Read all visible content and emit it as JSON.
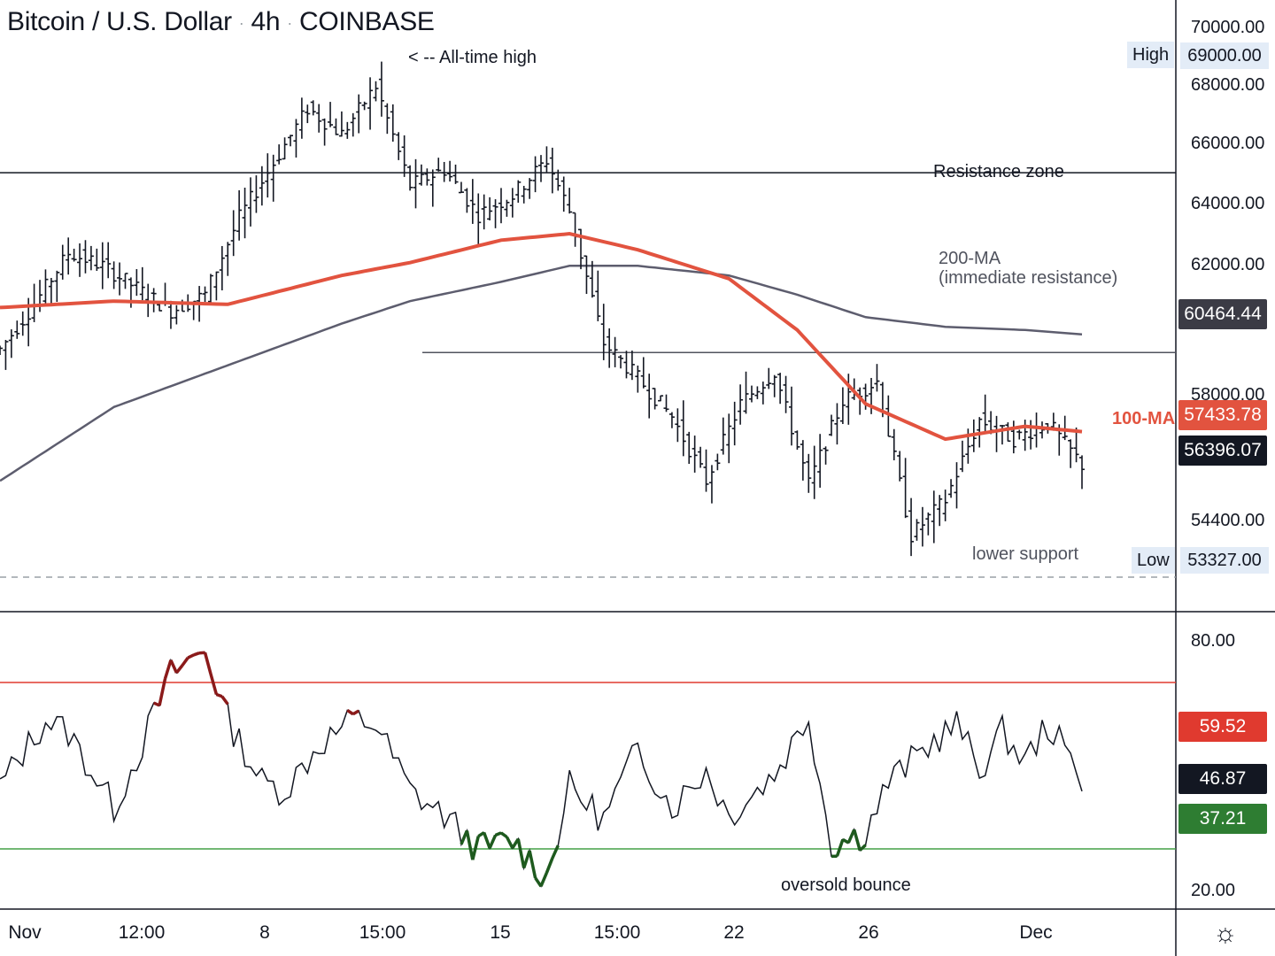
{
  "header": {
    "symbol": "Bitcoin / U.S. Dollar",
    "interval": "4h",
    "exchange": "COINBASE"
  },
  "annotations": {
    "all_time_high": "< -- All-time high",
    "resistance_zone": "Resistance zone",
    "ma200": "200-MA",
    "ma200_sub": "(immediate resistance)",
    "ma100": "100-MA",
    "lower_support": "lower support",
    "oversold_bounce": "oversold bounce"
  },
  "price_axis": {
    "ticks": [
      "70000.00",
      "68000.00",
      "66000.00",
      "64000.00",
      "62000.00",
      "58000.00",
      "54400.00"
    ],
    "high_label": "High",
    "high_value": "69000.00",
    "low_label": "Low",
    "low_value": "53327.00",
    "ma200_value": "60464.44",
    "ma100_value": "57433.78",
    "last_price": "56396.07"
  },
  "rsi_axis": {
    "ticks": [
      "80.00",
      "20.00"
    ],
    "upper_value": "59.52",
    "last_value": "46.87",
    "lower_value": "37.21"
  },
  "time_axis": {
    "labels": [
      "Nov",
      "12:00",
      "8",
      "15:00",
      "15",
      "15:00",
      "22",
      "26",
      "Dec"
    ]
  },
  "colors": {
    "ma100": "#e2533f",
    "ma200": "#5d5d6e",
    "rsi_overbought": "#e03a2f",
    "rsi_oversold": "#43a047",
    "last_price_tag": "#131722",
    "ma200_tag": "#3b3b45",
    "rsi_up_color": "#8b1a1a",
    "rsi_down_color": "#1e5a1e"
  },
  "chart_data": [
    {
      "type": "ohlc",
      "title": "Bitcoin / U.S. Dollar · 4h · COINBASE",
      "ylim": [
        52900,
        70000
      ],
      "horizontal_levels": [
        {
          "name": "Resistance zone",
          "value": 65500
        },
        {
          "name": "",
          "value": 59900
        },
        {
          "name": "lower support",
          "value": 52900
        }
      ],
      "series": [
        {
          "name": "price",
          "x": [
            0,
            6,
            12,
            18,
            24,
            30,
            36,
            42,
            48,
            54,
            60,
            66,
            72,
            78,
            84,
            90,
            96,
            100,
            106,
            112,
            118,
            124,
            130,
            136,
            142,
            148,
            154,
            160,
            166,
            172,
            178,
            184,
            190
          ],
          "values": [
            60000,
            61400,
            63000,
            62600,
            61900,
            61200,
            61700,
            64100,
            65800,
            67500,
            66700,
            68200,
            65100,
            65600,
            64200,
            64800,
            65900,
            64300,
            60200,
            59100,
            57900,
            55900,
            58300,
            59300,
            55800,
            58400,
            59000,
            54200,
            55300,
            57800,
            57200,
            57700,
            56396
          ]
        },
        {
          "name": "100-MA",
          "x": [
            0,
            20,
            40,
            60,
            72,
            88,
            100,
            112,
            128,
            140,
            152,
            166,
            180,
            190
          ],
          "values": [
            61300,
            61500,
            61400,
            62300,
            62700,
            63400,
            63600,
            63100,
            62200,
            60600,
            58300,
            57200,
            57600,
            57434
          ]
        },
        {
          "name": "200-MA",
          "x": [
            0,
            20,
            40,
            60,
            72,
            88,
            100,
            112,
            128,
            140,
            152,
            166,
            180,
            190
          ],
          "values": [
            55900,
            58200,
            59500,
            60800,
            61500,
            62100,
            62600,
            62600,
            62300,
            61700,
            61000,
            60700,
            60600,
            60464
          ]
        }
      ]
    },
    {
      "type": "line",
      "title": "RSI",
      "ylim": [
        20,
        80
      ],
      "horizontal_levels": [
        70,
        30
      ],
      "x": [
        0,
        8,
        12,
        20,
        24,
        30,
        36,
        40,
        46,
        50,
        56,
        62,
        66,
        72,
        78,
        84,
        90,
        96,
        100,
        106,
        112,
        118,
        124,
        128,
        136,
        142,
        146,
        152,
        156,
        164,
        168,
        172,
        176,
        180,
        184,
        190
      ],
      "values": [
        45,
        61,
        58,
        40,
        52,
        72,
        78,
        61,
        46,
        44,
        55,
        61,
        60,
        44,
        38,
        30,
        32,
        23,
        45,
        37,
        54,
        40,
        49,
        38,
        48,
        62,
        31,
        34,
        46,
        56,
        60,
        49,
        58,
        51,
        60,
        47
      ]
    }
  ]
}
